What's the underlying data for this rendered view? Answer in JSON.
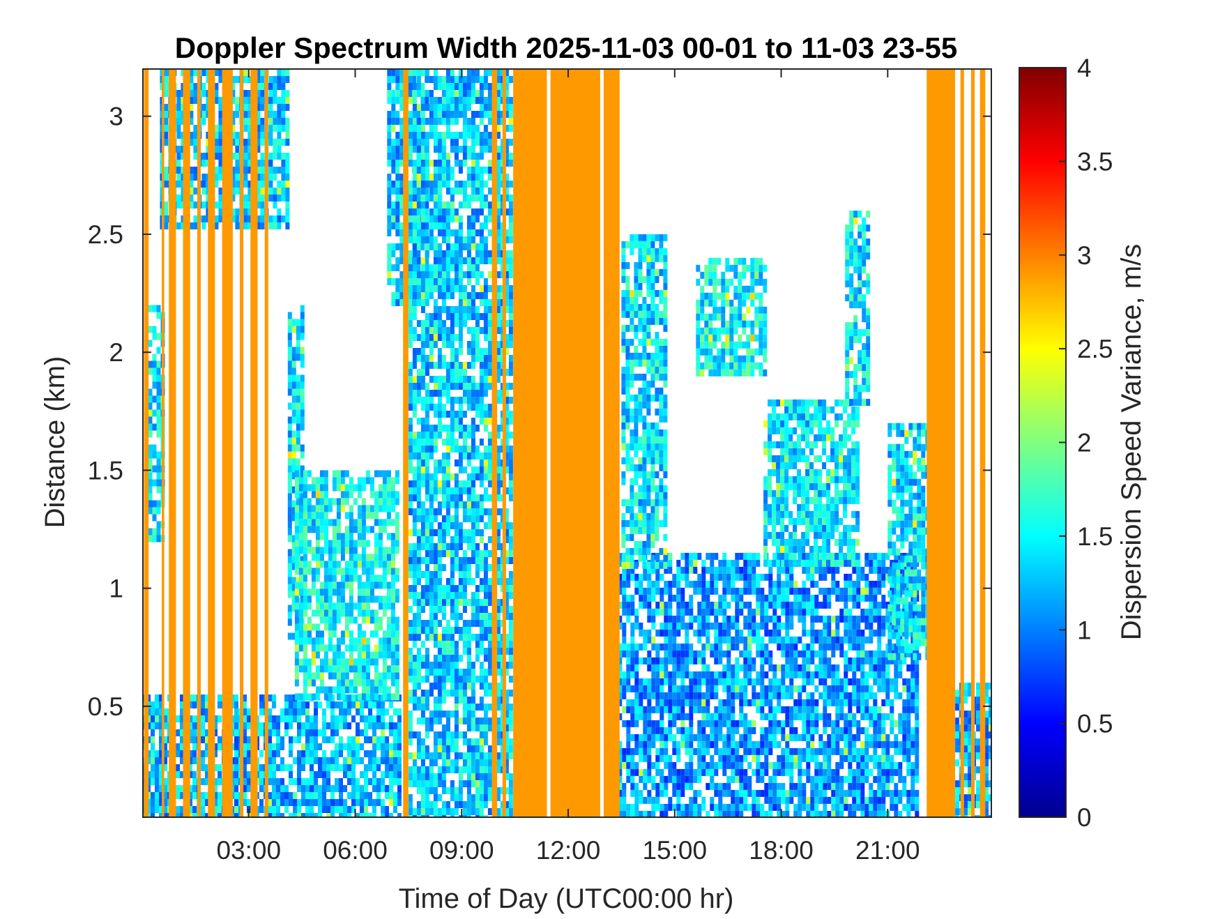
{
  "chart_data": {
    "type": "heatmap",
    "title": "Doppler Spectrum Width 2025-11-03 00-01 to 11-03 23-55",
    "xlabel": "Time of Day (UTC00:00 hr)",
    "ylabel": "Distance (km)",
    "xlim_hours": [
      0.02,
      23.92
    ],
    "ylim_km": [
      0.03,
      3.2
    ],
    "x_ticks": [
      {
        "value": 3,
        "label": "03:00"
      },
      {
        "value": 6,
        "label": "06:00"
      },
      {
        "value": 9,
        "label": "09:00"
      },
      {
        "value": 12,
        "label": "12:00"
      },
      {
        "value": 15,
        "label": "15:00"
      },
      {
        "value": 18,
        "label": "18:00"
      },
      {
        "value": 21,
        "label": "21:00"
      }
    ],
    "y_ticks": [
      {
        "value": 0.5,
        "label": "0.5"
      },
      {
        "value": 1,
        "label": "1"
      },
      {
        "value": 1.5,
        "label": "1.5"
      },
      {
        "value": 2,
        "label": "2"
      },
      {
        "value": 2.5,
        "label": "2.5"
      },
      {
        "value": 3,
        "label": "3"
      }
    ],
    "colorbar": {
      "label": "Dispersion Speed Variance, m/s",
      "colormap": "jet",
      "range": [
        0,
        4
      ],
      "ticks": [
        {
          "value": 0,
          "label": "0"
        },
        {
          "value": 0.5,
          "label": "0.5"
        },
        {
          "value": 1,
          "label": "1"
        },
        {
          "value": 1.5,
          "label": "1.5"
        },
        {
          "value": 2,
          "label": "2"
        },
        {
          "value": 2.5,
          "label": "2.5"
        },
        {
          "value": 3,
          "label": "3"
        },
        {
          "value": 3.5,
          "label": "3.5"
        },
        {
          "value": 4,
          "label": "4"
        }
      ]
    },
    "saturated_value": 2.9,
    "saturated_bands_hours": [
      [
        0.05,
        0.18
      ],
      [
        0.55,
        0.62
      ],
      [
        0.75,
        0.95
      ],
      [
        1.15,
        1.35
      ],
      [
        1.55,
        1.65
      ],
      [
        1.85,
        2.05
      ],
      [
        2.25,
        2.55
      ],
      [
        2.75,
        2.85
      ],
      [
        3.05,
        3.25
      ],
      [
        3.45,
        3.55
      ],
      [
        7.35,
        7.5
      ],
      [
        9.85,
        10.0
      ],
      [
        10.15,
        10.25
      ],
      [
        10.45,
        11.4
      ],
      [
        11.5,
        12.9
      ],
      [
        13.0,
        13.45
      ],
      [
        22.1,
        22.9
      ],
      [
        23.05,
        23.15
      ],
      [
        23.35,
        23.45
      ],
      [
        23.6,
        23.75
      ]
    ],
    "echo_regions": [
      {
        "time_hours": [
          0.0,
          7.3
        ],
        "height_km": [
          0.03,
          0.55
        ],
        "mean_value": 1.2
      },
      {
        "time_hours": [
          0.05,
          0.6
        ],
        "height_km": [
          1.2,
          2.2
        ],
        "mean_value": 1.4
      },
      {
        "time_hours": [
          0.5,
          4.1
        ],
        "height_km": [
          2.55,
          3.2
        ],
        "mean_value": 1.3
      },
      {
        "time_hours": [
          4.1,
          4.5
        ],
        "height_km": [
          0.8,
          2.2
        ],
        "mean_value": 1.4
      },
      {
        "time_hours": [
          4.3,
          7.2
        ],
        "height_km": [
          0.55,
          1.5
        ],
        "mean_value": 1.5
      },
      {
        "time_hours": [
          6.9,
          8.0
        ],
        "height_km": [
          2.2,
          3.2
        ],
        "mean_value": 1.3
      },
      {
        "time_hours": [
          7.5,
          10.4
        ],
        "height_km": [
          0.03,
          3.2
        ],
        "mean_value": 1.3
      },
      {
        "time_hours": [
          13.4,
          21.8
        ],
        "height_km": [
          0.03,
          1.15
        ],
        "mean_value": 1.1
      },
      {
        "time_hours": [
          13.5,
          14.7
        ],
        "height_km": [
          1.1,
          2.5
        ],
        "mean_value": 1.4
      },
      {
        "time_hours": [
          15.6,
          17.6
        ],
        "height_km": [
          1.9,
          2.4
        ],
        "mean_value": 1.5
      },
      {
        "time_hours": [
          17.5,
          20.2
        ],
        "height_km": [
          1.1,
          1.8
        ],
        "mean_value": 1.4
      },
      {
        "time_hours": [
          19.8,
          20.4
        ],
        "height_km": [
          1.8,
          2.6
        ],
        "mean_value": 1.4
      },
      {
        "time_hours": [
          21.0,
          22.1
        ],
        "height_km": [
          0.7,
          1.7
        ],
        "mean_value": 1.4
      },
      {
        "time_hours": [
          22.9,
          23.92
        ],
        "height_km": [
          0.03,
          0.6
        ],
        "mean_value": 1.2
      }
    ]
  }
}
